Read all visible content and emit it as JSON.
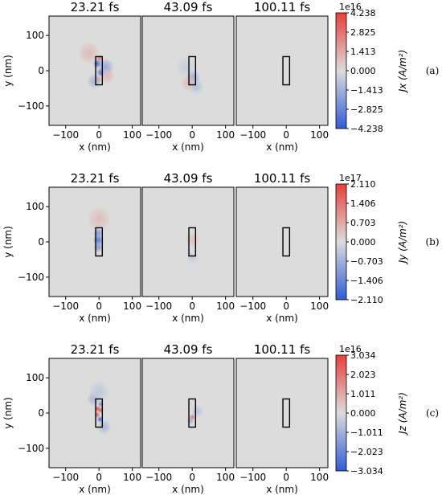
{
  "colors": {
    "background": "#dcdcdc",
    "positive": "#e8403a",
    "negative": "#2e5bd6",
    "colormap": "coolwarm"
  },
  "chart_data": [
    {
      "type": "heatmap",
      "row_label": "(a)",
      "panel_titles": [
        "23.21 fs",
        "43.09 fs",
        "100.11 fs"
      ],
      "xlabel": "x (nm)",
      "ylabel": "y (nm)",
      "x_range": [
        -150,
        125
      ],
      "y_range": [
        -155,
        155
      ],
      "x_ticks": [
        -100,
        0,
        100
      ],
      "x_tick_labels": [
        "−100",
        "0",
        "100"
      ],
      "y_ticks": [
        -100,
        0,
        100
      ],
      "y_tick_labels": [
        "−100",
        "0",
        "100"
      ],
      "rod": {
        "x": [
          -10,
          10
        ],
        "y": [
          -40,
          40
        ]
      },
      "colorbar": {
        "label": "Jx (A/m²)",
        "multiplier": "1e16",
        "min": -4.238,
        "max": 4.238,
        "ticks": [
          4.238,
          2.825,
          1.413,
          0.0,
          -1.413,
          -2.825,
          -4.238
        ],
        "tick_labels": [
          "4.238",
          "2.825",
          "1.413",
          "0.000",
          "−1.413",
          "−2.825",
          "−4.238"
        ]
      },
      "field_spots": [
        [
          {
            "x": -5,
            "y": 20,
            "v": -3.6,
            "r": 7
          },
          {
            "x": 5,
            "y": -5,
            "v": -3.2,
            "r": 7
          },
          {
            "x": 2,
            "y": 35,
            "v": 2.6,
            "r": 6
          },
          {
            "x": -3,
            "y": -25,
            "v": 2.2,
            "r": 6
          },
          {
            "x": 20,
            "y": 10,
            "v": -1.6,
            "r": 14
          },
          {
            "x": -15,
            "y": -30,
            "v": -1.2,
            "r": 12
          },
          {
            "x": -30,
            "y": 50,
            "v": 0.9,
            "r": 18
          },
          {
            "x": 25,
            "y": -15,
            "v": 1.0,
            "r": 12
          }
        ],
        [
          {
            "x": 3,
            "y": -20,
            "v": -1.5,
            "r": 12
          },
          {
            "x": -10,
            "y": -35,
            "v": 0.9,
            "r": 14
          },
          {
            "x": 12,
            "y": -45,
            "v": -0.9,
            "r": 12
          },
          {
            "x": -20,
            "y": 10,
            "v": -0.5,
            "r": 16
          }
        ],
        []
      ]
    },
    {
      "type": "heatmap",
      "row_label": "(b)",
      "panel_titles": [
        "23.21 fs",
        "43.09 fs",
        "100.11 fs"
      ],
      "xlabel": "x (nm)",
      "ylabel": "y (nm)",
      "x_range": [
        -150,
        125
      ],
      "y_range": [
        -155,
        155
      ],
      "x_ticks": [
        -100,
        0,
        100
      ],
      "x_tick_labels": [
        "−100",
        "0",
        "100"
      ],
      "y_ticks": [
        -100,
        0,
        100
      ],
      "y_tick_labels": [
        "−100",
        "0",
        "100"
      ],
      "rod": {
        "x": [
          -10,
          10
        ],
        "y": [
          -40,
          40
        ]
      },
      "colorbar": {
        "label": "Jy (A/m²)",
        "multiplier": "1e17",
        "min": -2.11,
        "max": 2.11,
        "ticks": [
          2.11,
          1.406,
          0.703,
          0.0,
          -0.703,
          -1.406,
          -2.11
        ],
        "tick_labels": [
          "2.110",
          "1.406",
          "0.703",
          "0.000",
          "−0.703",
          "−1.406",
          "−2.110"
        ]
      },
      "field_spots": [
        [
          {
            "x": -2,
            "y": 5,
            "v": -1.6,
            "r": 9
          },
          {
            "x": -2,
            "y": 25,
            "v": -1.1,
            "r": 8
          },
          {
            "x": -2,
            "y": -15,
            "v": -1.1,
            "r": 8
          },
          {
            "x": 0,
            "y": 65,
            "v": 0.4,
            "r": 20
          }
        ],
        [
          {
            "x": 0,
            "y": 5,
            "v": 0.35,
            "r": 12
          },
          {
            "x": 0,
            "y": -45,
            "v": -0.3,
            "r": 10
          }
        ],
        []
      ]
    },
    {
      "type": "heatmap",
      "row_label": "(c)",
      "panel_titles": [
        "23.21 fs",
        "43.09 fs",
        "100.11 fs"
      ],
      "xlabel": "x (nm)",
      "ylabel": "y (nm)",
      "x_range": [
        -150,
        125
      ],
      "y_range": [
        -155,
        155
      ],
      "x_ticks": [
        -100,
        0,
        100
      ],
      "x_tick_labels": [
        "−100",
        "0",
        "100"
      ],
      "y_ticks": [
        -100,
        0,
        100
      ],
      "y_tick_labels": [
        "−100",
        "0",
        "100"
      ],
      "rod": {
        "x": [
          -10,
          10
        ],
        "y": [
          -40,
          40
        ]
      },
      "colorbar": {
        "label": "Jz (A/m²)",
        "multiplier": "1e16",
        "min": -3.034,
        "max": 3.034,
        "ticks": [
          3.034,
          2.023,
          1.011,
          0.0,
          -1.011,
          -2.023,
          -3.034
        ],
        "tick_labels": [
          "3.034",
          "2.023",
          "1.011",
          "0.000",
          "−1.011",
          "−2.023",
          "−3.034"
        ]
      },
      "field_spots": [
        [
          {
            "x": -4,
            "y": 12,
            "v": 2.7,
            "r": 5
          },
          {
            "x": 5,
            "y": 8,
            "v": 2.5,
            "r": 5
          },
          {
            "x": 3,
            "y": -18,
            "v": -2.6,
            "r": 5
          },
          {
            "x": -5,
            "y": -5,
            "v": 2.2,
            "r": 5
          },
          {
            "x": 5,
            "y": 25,
            "v": -1.8,
            "r": 5
          },
          {
            "x": -15,
            "y": 40,
            "v": -0.9,
            "r": 12
          },
          {
            "x": 15,
            "y": -40,
            "v": -0.8,
            "r": 12
          },
          {
            "x": 0,
            "y": 60,
            "v": -0.5,
            "r": 18
          }
        ],
        [
          {
            "x": 0,
            "y": -12,
            "v": 2.1,
            "r": 5
          },
          {
            "x": -5,
            "y": -22,
            "v": -1.0,
            "r": 6
          },
          {
            "x": 15,
            "y": 5,
            "v": -0.6,
            "r": 10
          }
        ],
        []
      ]
    }
  ]
}
